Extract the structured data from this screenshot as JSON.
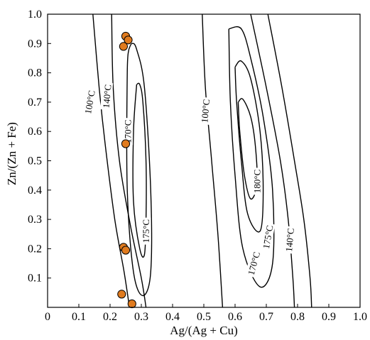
{
  "chart_data": {
    "type": "scatter",
    "title": "",
    "xlabel": "Ag/(Ag + Cu)",
    "ylabel": "Zn/(Zn + Fe)",
    "xlim": [
      0,
      1
    ],
    "ylim": [
      0,
      1
    ],
    "x_ticks": [
      "0",
      "0.1",
      "0.2",
      "0.3",
      "0.4",
      "0.5",
      "0.6",
      "0.7",
      "0.8",
      "0.9",
      "1.0"
    ],
    "y_ticks": [
      "0.1",
      "0.2",
      "0.3",
      "0.4",
      "0.5",
      "0.6",
      "0.7",
      "0.8",
      "0.9",
      "1.0"
    ],
    "grid": false,
    "legend": "none",
    "point_color": "#e07b1f",
    "line_color": "#000000",
    "points": [
      {
        "x": 0.25,
        "y": 0.925
      },
      {
        "x": 0.258,
        "y": 0.912
      },
      {
        "x": 0.243,
        "y": 0.89
      },
      {
        "x": 0.25,
        "y": 0.558
      },
      {
        "x": 0.243,
        "y": 0.205
      },
      {
        "x": 0.25,
        "y": 0.195
      },
      {
        "x": 0.237,
        "y": 0.045
      },
      {
        "x": 0.27,
        "y": 0.012
      }
    ],
    "isotherms": [
      {
        "label": "100°C",
        "line": [
          [
            0.145,
            1.0
          ],
          [
            0.165,
            0.75
          ],
          [
            0.185,
            0.55
          ],
          [
            0.215,
            0.3
          ],
          [
            0.245,
            0.12
          ],
          [
            0.262,
            0.0
          ]
        ]
      },
      {
        "label": "140°C",
        "line": [
          [
            0.205,
            1.0
          ],
          [
            0.21,
            0.75
          ],
          [
            0.23,
            0.5
          ],
          [
            0.265,
            0.28
          ],
          [
            0.3,
            0.1
          ],
          [
            0.315,
            0.0
          ]
        ]
      },
      {
        "label": "170°C",
        "closed": true,
        "line": [
          [
            0.26,
            0.88
          ],
          [
            0.255,
            0.8
          ],
          [
            0.255,
            0.4
          ],
          [
            0.275,
            0.12
          ],
          [
            0.305,
            0.04
          ],
          [
            0.33,
            0.12
          ],
          [
            0.33,
            0.4
          ],
          [
            0.31,
            0.75
          ],
          [
            0.285,
            0.88
          ],
          [
            0.27,
            0.9
          ],
          [
            0.26,
            0.88
          ]
        ]
      },
      {
        "label": "175°C",
        "closed": true,
        "line": [
          [
            0.285,
            0.76
          ],
          [
            0.275,
            0.6
          ],
          [
            0.275,
            0.36
          ],
          [
            0.295,
            0.2
          ],
          [
            0.31,
            0.18
          ],
          [
            0.315,
            0.3
          ],
          [
            0.315,
            0.5
          ],
          [
            0.305,
            0.7
          ],
          [
            0.295,
            0.76
          ],
          [
            0.285,
            0.76
          ]
        ]
      },
      {
        "label": "100°C",
        "line": [
          [
            0.495,
            1.0
          ],
          [
            0.505,
            0.75
          ],
          [
            0.525,
            0.5
          ],
          [
            0.545,
            0.25
          ],
          [
            0.56,
            0.0
          ]
        ]
      },
      {
        "label": "170°C",
        "closed": true,
        "line": [
          [
            0.58,
            0.95
          ],
          [
            0.585,
            0.7
          ],
          [
            0.6,
            0.45
          ],
          [
            0.625,
            0.2
          ],
          [
            0.68,
            0.07
          ],
          [
            0.72,
            0.15
          ],
          [
            0.72,
            0.4
          ],
          [
            0.69,
            0.65
          ],
          [
            0.65,
            0.85
          ],
          [
            0.62,
            0.95
          ],
          [
            0.58,
            0.95
          ]
        ]
      },
      {
        "label": "175°C",
        "closed": true,
        "line": [
          [
            0.6,
            0.82
          ],
          [
            0.605,
            0.7
          ],
          [
            0.62,
            0.5
          ],
          [
            0.64,
            0.32
          ],
          [
            0.68,
            0.26
          ],
          [
            0.69,
            0.4
          ],
          [
            0.68,
            0.6
          ],
          [
            0.65,
            0.78
          ],
          [
            0.62,
            0.84
          ],
          [
            0.6,
            0.82
          ]
        ]
      },
      {
        "label": "180°C",
        "closed": true,
        "line": [
          [
            0.61,
            0.7
          ],
          [
            0.615,
            0.6
          ],
          [
            0.63,
            0.45
          ],
          [
            0.65,
            0.37
          ],
          [
            0.67,
            0.42
          ],
          [
            0.665,
            0.55
          ],
          [
            0.65,
            0.65
          ],
          [
            0.625,
            0.71
          ],
          [
            0.61,
            0.7
          ]
        ]
      },
      {
        "label": "140°C",
        "line": [
          [
            0.65,
            1.0
          ],
          [
            0.7,
            0.75
          ],
          [
            0.745,
            0.5
          ],
          [
            0.77,
            0.3
          ],
          [
            0.785,
            0.1
          ],
          [
            0.79,
            0.0
          ]
        ]
      },
      {
        "label": "",
        "line": [
          [
            0.705,
            1.0
          ],
          [
            0.75,
            0.75
          ],
          [
            0.79,
            0.5
          ],
          [
            0.82,
            0.3
          ],
          [
            0.84,
            0.1
          ],
          [
            0.845,
            0.0
          ]
        ]
      }
    ],
    "isotherm_labels": [
      {
        "text": "100°C",
        "x": 0.135,
        "y": 0.7,
        "angle": -80
      },
      {
        "text": "140°C",
        "x": 0.19,
        "y": 0.72,
        "angle": -85
      },
      {
        "text": "170°C",
        "x": 0.257,
        "y": 0.6,
        "angle": -90
      },
      {
        "text": "175°C",
        "x": 0.315,
        "y": 0.26,
        "angle": -90
      },
      {
        "text": "100°C",
        "x": 0.505,
        "y": 0.67,
        "angle": -85
      },
      {
        "text": "180°C",
        "x": 0.67,
        "y": 0.43,
        "angle": -90
      },
      {
        "text": "175°C",
        "x": 0.705,
        "y": 0.24,
        "angle": -80
      },
      {
        "text": "170°C",
        "x": 0.66,
        "y": 0.15,
        "angle": -75
      },
      {
        "text": "140°C",
        "x": 0.775,
        "y": 0.23,
        "angle": -85
      }
    ]
  }
}
